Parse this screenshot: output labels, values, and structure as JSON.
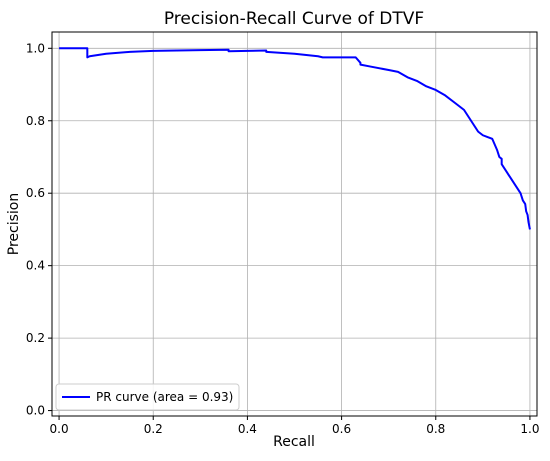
{
  "chart_data": {
    "type": "line",
    "title": "Precision-Recall Curve of DTVF",
    "xlabel": "Recall",
    "ylabel": "Precision",
    "xlim": [
      -0.015,
      1.015
    ],
    "ylim": [
      -0.015,
      1.045
    ],
    "xticks": [
      "0.0",
      "0.2",
      "0.4",
      "0.6",
      "0.8",
      "1.0"
    ],
    "yticks": [
      "0.0",
      "0.2",
      "0.4",
      "0.6",
      "0.8",
      "1.0"
    ],
    "grid": true,
    "legend_position": "lower-left",
    "series": [
      {
        "name": "PR curve (area = 0.93)",
        "color": "#0000ff",
        "x": [
          0.0,
          0.06,
          0.06,
          0.065,
          0.1,
          0.15,
          0.2,
          0.3,
          0.36,
          0.36,
          0.4,
          0.44,
          0.44,
          0.5,
          0.55,
          0.56,
          0.6,
          0.63,
          0.64,
          0.64,
          0.66,
          0.7,
          0.72,
          0.74,
          0.76,
          0.78,
          0.8,
          0.82,
          0.84,
          0.86,
          0.87,
          0.88,
          0.89,
          0.9,
          0.91,
          0.92,
          0.93,
          0.935,
          0.94,
          0.94,
          0.95,
          0.96,
          0.97,
          0.98,
          0.985,
          0.99,
          0.992,
          0.995,
          0.997,
          1.0
        ],
        "y": [
          1.0,
          1.0,
          0.975,
          0.978,
          0.985,
          0.99,
          0.993,
          0.995,
          0.996,
          0.992,
          0.993,
          0.994,
          0.99,
          0.985,
          0.978,
          0.975,
          0.975,
          0.975,
          0.96,
          0.955,
          0.95,
          0.94,
          0.935,
          0.92,
          0.91,
          0.895,
          0.885,
          0.87,
          0.85,
          0.83,
          0.81,
          0.79,
          0.77,
          0.76,
          0.755,
          0.75,
          0.72,
          0.7,
          0.695,
          0.68,
          0.66,
          0.64,
          0.62,
          0.6,
          0.58,
          0.57,
          0.55,
          0.54,
          0.52,
          0.5
        ]
      }
    ]
  }
}
